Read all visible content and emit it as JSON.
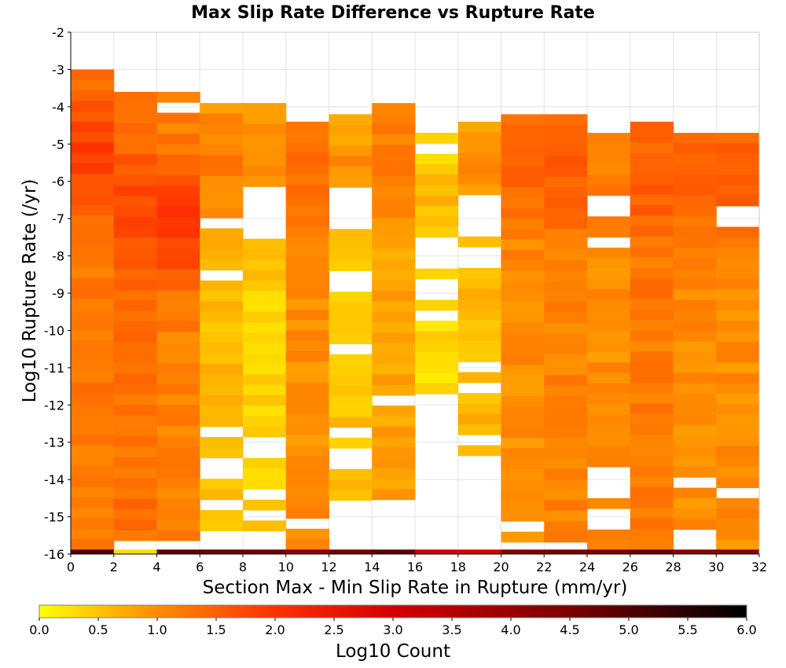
{
  "chart_data": {
    "type": "heatmap",
    "title": "Max Slip Rate Difference vs Rupture Rate",
    "xlabel": "Section Max - Min Slip Rate in Rupture (mm/yr)",
    "ylabel": "Log10 Rupture Rate (/yr)",
    "xlim": [
      0,
      32
    ],
    "ylim": [
      -16,
      -2
    ],
    "x_ticks": [
      0,
      2,
      4,
      6,
      8,
      10,
      12,
      14,
      16,
      18,
      20,
      22,
      24,
      26,
      28,
      30,
      32
    ],
    "y_ticks": [
      -2,
      -3,
      -4,
      -5,
      -6,
      -7,
      -8,
      -9,
      -10,
      -11,
      -12,
      -13,
      -14,
      -15,
      -16
    ],
    "x_bin_width": 2,
    "y_bin_width": 0.28,
    "colorbar": {
      "label": "Log10 Count",
      "range": [
        0,
        6
      ],
      "ticks": [
        "0.0",
        "0.5",
        "1.0",
        "1.5",
        "2.0",
        "2.5",
        "3.0",
        "3.5",
        "4.0",
        "4.5",
        "5.0",
        "5.5",
        "6.0"
      ],
      "stops": [
        "#ffff00",
        "#ffc400",
        "#ff8c00",
        "#ff3000",
        "#d40000",
        "#7a0000",
        "#000000"
      ]
    },
    "columns": [
      {
        "x_start": 0,
        "y_top": -3.0,
        "y_bottom": -15.9,
        "base": 1.2,
        "peak_y": -5.3,
        "peak": 1.85,
        "gaps": [],
        "floor": 5.1
      },
      {
        "x_start": 2,
        "y_top": -3.6,
        "y_bottom": -15.9,
        "base": 1.3,
        "peak_y": -6.7,
        "peak": 1.7,
        "gaps": [],
        "floor": 0.3
      },
      {
        "x_start": 4,
        "y_top": -3.6,
        "y_bottom": -15.9,
        "base": 1.1,
        "peak_y": -7.1,
        "peak": 1.9,
        "gaps": [
          [
            -4.1,
            -3.8
          ]
        ],
        "floor": 4.9
      },
      {
        "x_start": 6,
        "y_top": -3.9,
        "y_bottom": -15.9,
        "base": 0.6,
        "peak_y": -5.5,
        "peak": 1.2,
        "gaps": [
          [
            -7.3,
            -6.9
          ],
          [
            -8.7,
            -8.4
          ],
          [
            -12.8,
            -12.5
          ],
          [
            -14.0,
            -13.5
          ],
          [
            -14.7,
            -14.4
          ],
          [
            -15.9,
            -15.3
          ]
        ],
        "floor": 4.8
      },
      {
        "x_start": 8,
        "y_top": -3.9,
        "y_bottom": -15.9,
        "base": 0.4,
        "peak_y": -5.6,
        "peak": 1.1,
        "gaps": [
          [
            -7.5,
            -6.1
          ],
          [
            -13.4,
            -12.8
          ],
          [
            -14.4,
            -14.2
          ],
          [
            -15.1,
            -14.7
          ],
          [
            -15.9,
            -15.4
          ]
        ],
        "floor": 4.7
      },
      {
        "x_start": 10,
        "y_top": -4.4,
        "y_bottom": -15.9,
        "base": 1.0,
        "peak_y": -6.0,
        "peak": 1.3,
        "gaps": [
          [
            -15.3,
            -15.1
          ]
        ],
        "floor": 4.3
      },
      {
        "x_start": 12,
        "y_top": -4.2,
        "y_bottom": -15.3,
        "base": 0.5,
        "peak_y": -5.9,
        "peak": 1.0,
        "gaps": [
          [
            -7.3,
            -6.1
          ],
          [
            -9.0,
            -8.4
          ],
          [
            -10.5,
            -10.3
          ],
          [
            -12.8,
            -12.5
          ],
          [
            -13.6,
            -13.2
          ],
          [
            -15.0,
            -14.5
          ]
        ],
        "floor": 4.6
      },
      {
        "x_start": 14,
        "y_top": -3.9,
        "y_bottom": -14.7,
        "base": 0.8,
        "peak_y": -5.2,
        "peak": 1.2,
        "gaps": [
          [
            -12.1,
            -11.8
          ]
        ],
        "floor": 4.9
      },
      {
        "x_start": 16,
        "y_top": -4.7,
        "y_bottom": -14.1,
        "base": 0.3,
        "peak_y": -7.0,
        "peak": 0.6,
        "gaps": [
          [
            -5.3,
            -5.0
          ],
          [
            -8.3,
            -7.6
          ],
          [
            -9.1,
            -8.6
          ],
          [
            -9.7,
            -9.4
          ],
          [
            -14.1,
            -11.8
          ]
        ],
        "floor": 3.1
      },
      {
        "x_start": 18,
        "y_top": -4.4,
        "y_bottom": -13.6,
        "base": 0.6,
        "peak_y": -5.4,
        "peak": 1.0,
        "gaps": [
          [
            -7.6,
            -6.5
          ],
          [
            -8.2,
            -7.9
          ],
          [
            -11.0,
            -10.7
          ],
          [
            -11.8,
            -11.5
          ],
          [
            -13.1,
            -12.8
          ]
        ],
        "floor": 3.0
      },
      {
        "x_start": 20,
        "y_top": -4.2,
        "y_bottom": -15.9,
        "base": 1.0,
        "peak_y": -5.6,
        "peak": 1.4,
        "gaps": [
          [
            -15.3,
            -15.0
          ]
        ],
        "floor": 4.4
      },
      {
        "x_start": 22,
        "y_top": -4.2,
        "y_bottom": -15.9,
        "base": 1.1,
        "peak_y": -5.8,
        "peak": 1.5,
        "gaps": [],
        "floor": 4.6
      },
      {
        "x_start": 24,
        "y_top": -4.7,
        "y_bottom": -15.9,
        "base": 1.0,
        "peak_y": -5.4,
        "peak": 1.2,
        "gaps": [
          [
            -7.0,
            -6.4
          ],
          [
            -7.9,
            -7.6
          ],
          [
            -14.5,
            -13.7
          ],
          [
            -15.3,
            -14.9
          ]
        ],
        "floor": 4.5
      },
      {
        "x_start": 26,
        "y_top": -4.4,
        "y_bottom": -15.9,
        "base": 1.2,
        "peak_y": -5.8,
        "peak": 1.5,
        "gaps": [],
        "floor": 4.8
      },
      {
        "x_start": 28,
        "y_top": -4.7,
        "y_bottom": -15.6,
        "base": 1.0,
        "peak_y": -5.6,
        "peak": 1.5,
        "gaps": [
          [
            -14.1,
            -13.9
          ],
          [
            -15.9,
            -15.6
          ]
        ],
        "floor": 4.3
      },
      {
        "x_start": 30,
        "y_top": -4.7,
        "y_bottom": -15.9,
        "base": 1.0,
        "peak_y": -6.0,
        "peak": 1.55,
        "gaps": [
          [
            -7.1,
            -6.8
          ],
          [
            -14.5,
            -14.2
          ]
        ],
        "floor": 4.4
      }
    ]
  }
}
